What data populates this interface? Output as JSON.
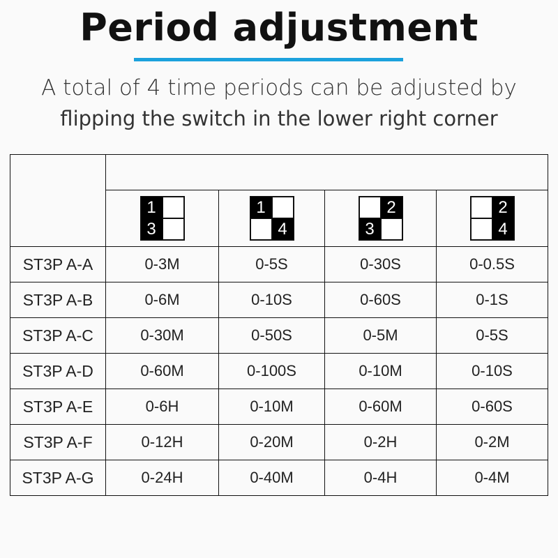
{
  "header": {
    "title": "Period adjustment",
    "accent_color": "#1ba1dc",
    "subtitle_line1": "A total of 4 time periods can be adjusted by",
    "subtitle_line2": "flipping the switch in the lower right corner"
  },
  "table": {
    "switch_settings": [
      {
        "cells": [
          {
            "on": true,
            "label": "1"
          },
          {
            "on": false,
            "label": ""
          },
          {
            "on": true,
            "label": "3"
          },
          {
            "on": false,
            "label": ""
          }
        ]
      },
      {
        "cells": [
          {
            "on": true,
            "label": "1"
          },
          {
            "on": false,
            "label": ""
          },
          {
            "on": false,
            "label": ""
          },
          {
            "on": true,
            "label": "4"
          }
        ]
      },
      {
        "cells": [
          {
            "on": false,
            "label": ""
          },
          {
            "on": true,
            "label": "2"
          },
          {
            "on": true,
            "label": "3"
          },
          {
            "on": false,
            "label": ""
          }
        ]
      },
      {
        "cells": [
          {
            "on": false,
            "label": ""
          },
          {
            "on": true,
            "label": "2"
          },
          {
            "on": false,
            "label": ""
          },
          {
            "on": true,
            "label": "4"
          }
        ]
      }
    ],
    "rows": [
      {
        "model": "ST3P A-A",
        "values": [
          "0-3M",
          "0-5S",
          "0-30S",
          "0-0.5S"
        ]
      },
      {
        "model": "ST3P A-B",
        "values": [
          "0-6M",
          "0-10S",
          "0-60S",
          "0-1S"
        ]
      },
      {
        "model": "ST3P A-C",
        "values": [
          "0-30M",
          "0-50S",
          "0-5M",
          "0-5S"
        ]
      },
      {
        "model": "ST3P A-D",
        "values": [
          "0-60M",
          "0-100S",
          "0-10M",
          "0-10S"
        ]
      },
      {
        "model": "ST3P A-E",
        "values": [
          "0-6H",
          "0-10M",
          "0-60M",
          "0-60S"
        ]
      },
      {
        "model": "ST3P A-F",
        "values": [
          "0-12H",
          "0-20M",
          "0-2H",
          "0-2M"
        ]
      },
      {
        "model": "ST3P A-G",
        "values": [
          "0-24H",
          "0-40M",
          "0-4H",
          "0-4M"
        ]
      }
    ]
  }
}
